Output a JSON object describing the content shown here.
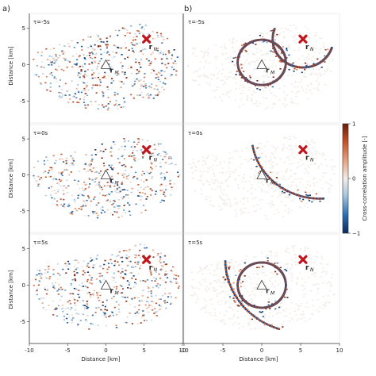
{
  "chart_data": {
    "type": "heatmap",
    "panel_labels": [
      "a)",
      "b)"
    ],
    "xlabel": "Distance [km]",
    "ylabel": "Distance [km]",
    "xlim": [
      -10,
      10
    ],
    "ylim": [
      -8,
      7
    ],
    "xticks": [
      -10,
      -5,
      0,
      5,
      10
    ],
    "yticks": [
      5,
      0,
      -5
    ],
    "tau_labels": [
      "τ=-5s",
      "τ=0s",
      "τ=5s"
    ],
    "colorbar": {
      "label": "Cross-correlation amplitude [-]",
      "range": [
        -1,
        1
      ],
      "ticks": [
        1,
        0,
        -1
      ],
      "tick_labels": [
        "1",
        "0",
        "−1"
      ],
      "colors": [
        "#0b2a5b",
        "#2f6fb0",
        "#a8c8e0",
        "#f2ece6",
        "#e8a98a",
        "#c2552a",
        "#6b1a0a"
      ]
    },
    "station_M": {
      "x": 0,
      "y": 0,
      "label": "r",
      "subscript": "M"
    },
    "station_N": {
      "x": 5.3,
      "y": 3.5,
      "label": "r",
      "subscript": "N"
    },
    "rings": [
      {
        "tau": -5,
        "side": "b",
        "circles": [
          {
            "cx": 0,
            "cy": 0.3,
            "r": 3.1
          },
          {
            "cx": 5.3,
            "cy": 3.5,
            "r": 3.9
          }
        ]
      },
      {
        "tau": 0,
        "side": "b",
        "circles": [
          {
            "cx": 7.5,
            "cy": 5.5,
            "r": 8.8
          }
        ]
      },
      {
        "tau": 5,
        "side": "b",
        "circles": [
          {
            "cx": 0,
            "cy": 0,
            "r": 3.1
          },
          {
            "cx": 5.3,
            "cy": 3.5,
            "r": 10.0
          }
        ]
      }
    ]
  }
}
